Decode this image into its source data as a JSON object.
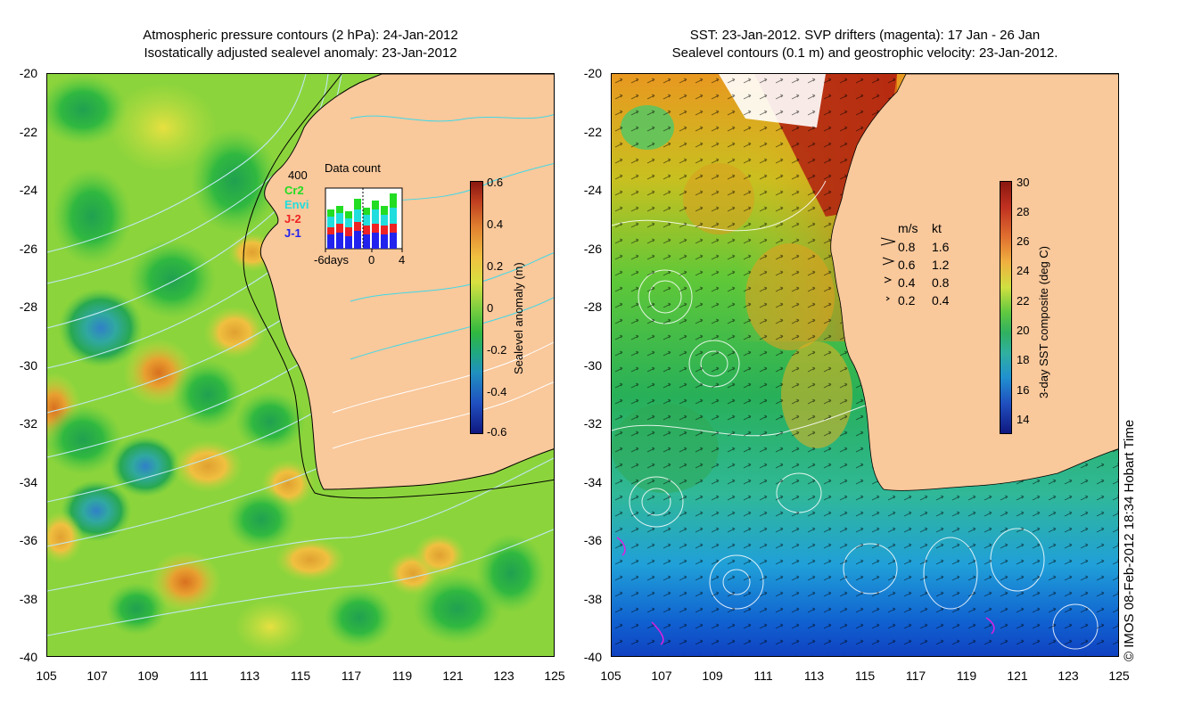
{
  "left": {
    "title_line1": "Atmospheric pressure contours (2 hPa): 24-Jan-2012",
    "title_line2": "Isostatically adjusted sealevel anomaly: 23-Jan-2012",
    "colorbar": {
      "title": "Sealevel anomaly (m)",
      "ticks": [
        "0.6",
        "0.4",
        "0.2",
        "0",
        "-0.2",
        "-0.4",
        "-0.6"
      ]
    },
    "data_count": {
      "title": "Data count",
      "ymax_label": "400",
      "missions": [
        {
          "name": "Cr2",
          "color": "#22dd22"
        },
        {
          "name": "Envi",
          "color": "#22dddd"
        },
        {
          "name": "J-2",
          "color": "#ee2222"
        },
        {
          "name": "J-1",
          "color": "#2222ee"
        }
      ],
      "x_labels": [
        "-6days",
        "0",
        "4"
      ]
    }
  },
  "right": {
    "title_line1": "SST: 23-Jan-2012. SVP drifters (magenta): 17 Jan - 26 Jan",
    "title_line2": "Sealevel contours (0.1 m) and geostrophic velocity: 23-Jan-2012.",
    "colorbar": {
      "title": "3-day SST composite (deg C)",
      "ticks": [
        "30",
        "28",
        "26",
        "24",
        "22",
        "20",
        "18",
        "16",
        "14"
      ]
    },
    "velocity_legend": {
      "header_ms": "m/s",
      "header_kt": "kt",
      "rows": [
        {
          "ms": "0.8",
          "kt": "1.6"
        },
        {
          "ms": "0.6",
          "kt": "1.2"
        },
        {
          "ms": "0.4",
          "kt": "0.8"
        },
        {
          "ms": "0.2",
          "kt": "0.4"
        }
      ]
    }
  },
  "axes": {
    "y_labels": [
      "-20",
      "-22",
      "-24",
      "-26",
      "-28",
      "-30",
      "-32",
      "-34",
      "-36",
      "-38",
      "-40"
    ],
    "x_labels": [
      "105",
      "107",
      "109",
      "111",
      "113",
      "115",
      "117",
      "119",
      "121",
      "123",
      "125"
    ]
  },
  "credit": "© IMOS 08-Feb-2012 18:34 Hobart Time",
  "colors": {
    "land": "#f9c89b",
    "coast": "#000000"
  }
}
